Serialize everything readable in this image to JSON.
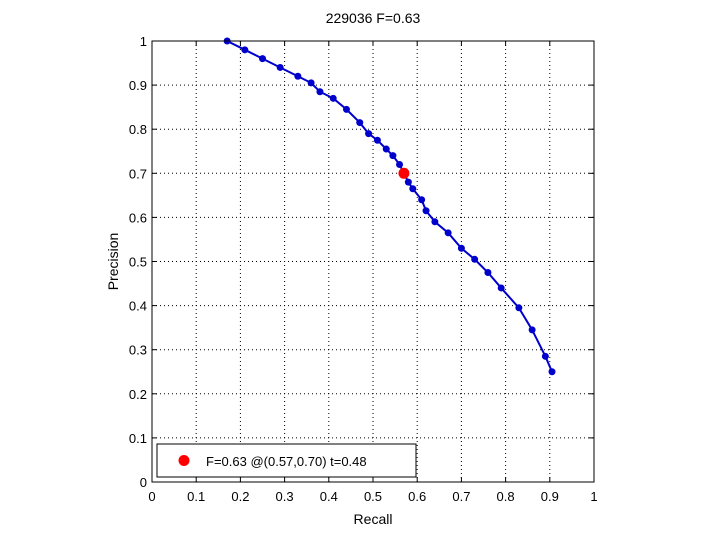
{
  "chart_data": {
    "type": "line",
    "title": "229036 F=0.63",
    "xlabel": "Recall",
    "ylabel": "Precision",
    "xlim": [
      0,
      1
    ],
    "ylim": [
      0,
      1
    ],
    "grid": true,
    "xticks": [
      0,
      0.1,
      0.2,
      0.3,
      0.4,
      0.5,
      0.6,
      0.7,
      0.8,
      0.9,
      1
    ],
    "yticks": [
      0,
      0.1,
      0.2,
      0.3,
      0.4,
      0.5,
      0.6,
      0.7,
      0.8,
      0.9,
      1
    ],
    "xtick_labels": [
      "0",
      "0.1",
      "0.2",
      "0.3",
      "0.4",
      "0.5",
      "0.6",
      "0.7",
      "0.8",
      "0.9",
      "1"
    ],
    "ytick_labels": [
      "0",
      "0.1",
      "0.2",
      "0.3",
      "0.4",
      "0.5",
      "0.6",
      "0.7",
      "0.8",
      "0.9",
      "1"
    ],
    "series": [
      {
        "color": "#0000cc",
        "x": [
          0.17,
          0.21,
          0.25,
          0.29,
          0.33,
          0.36,
          0.38,
          0.41,
          0.44,
          0.47,
          0.49,
          0.51,
          0.53,
          0.545,
          0.56,
          0.58,
          0.59,
          0.61,
          0.62,
          0.64,
          0.67,
          0.7,
          0.73,
          0.76,
          0.79,
          0.83,
          0.86,
          0.89,
          0.905
        ],
        "y": [
          1.0,
          0.98,
          0.96,
          0.94,
          0.92,
          0.905,
          0.885,
          0.87,
          0.845,
          0.815,
          0.79,
          0.775,
          0.755,
          0.74,
          0.72,
          0.68,
          0.665,
          0.64,
          0.615,
          0.59,
          0.565,
          0.53,
          0.505,
          0.475,
          0.44,
          0.395,
          0.345,
          0.285,
          0.25
        ]
      }
    ],
    "highlight_point": {
      "x": 0.57,
      "y": 0.7,
      "color": "#ff0000"
    },
    "legend": {
      "position": "bottom-left",
      "entries": [
        {
          "label": "F=0.63 @(0.57,0.70) t=0.48",
          "color": "#ff0000",
          "marker": "circle"
        }
      ]
    }
  }
}
